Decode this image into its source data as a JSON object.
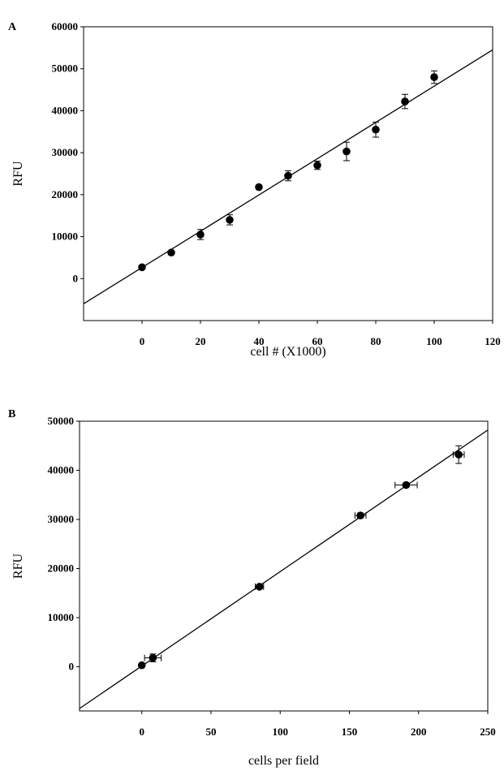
{
  "chart_data": [
    {
      "type": "scatter",
      "panel_label": "A",
      "xlabel": "cell # (X1000)",
      "ylabel": "RFU",
      "xlim": [
        -20,
        120
      ],
      "ylim": [
        -10000,
        60000
      ],
      "x_ticks": [
        0,
        20,
        40,
        60,
        80,
        100,
        120
      ],
      "y_ticks": [
        0,
        10000,
        20000,
        30000,
        40000,
        50000,
        60000
      ],
      "grid": false,
      "series": [
        {
          "points": [
            {
              "x": 0,
              "y": 2700,
              "yerr": 300
            },
            {
              "x": 10,
              "y": 6200,
              "yerr": 300
            },
            {
              "x": 20,
              "y": 10500,
              "yerr": 1200
            },
            {
              "x": 30,
              "y": 14000,
              "yerr": 1200
            },
            {
              "x": 40,
              "y": 21800,
              "yerr": 300
            },
            {
              "x": 50,
              "y": 24500,
              "yerr": 1200
            },
            {
              "x": 60,
              "y": 27000,
              "yerr": 1000
            },
            {
              "x": 70,
              "y": 30300,
              "yerr": 2200
            },
            {
              "x": 80,
              "y": 35500,
              "yerr": 1800
            },
            {
              "x": 90,
              "y": 42200,
              "yerr": 1700
            },
            {
              "x": 100,
              "y": 48000,
              "yerr": 1500
            }
          ],
          "trendline": {
            "x0": -20,
            "y0": -6000,
            "x1": 120,
            "y1": 54500
          }
        }
      ]
    },
    {
      "type": "scatter",
      "panel_label": "B",
      "xlabel": "cells per field",
      "ylabel": "RFU",
      "xlim": [
        -45,
        250
      ],
      "ylim": [
        -9000,
        50000
      ],
      "x_ticks": [
        0,
        50,
        100,
        150,
        200,
        250
      ],
      "y_ticks": [
        0,
        10000,
        20000,
        30000,
        40000,
        50000
      ],
      "grid": false,
      "series": [
        {
          "points": [
            {
              "x": 0,
              "y": 300,
              "xerr": 0,
              "yerr": 200
            },
            {
              "x": 8,
              "y": 1800,
              "xerr": 6,
              "yerr": 800
            },
            {
              "x": 85,
              "y": 16300,
              "xerr": 3,
              "yerr": 400
            },
            {
              "x": 158,
              "y": 30800,
              "xerr": 4,
              "yerr": 500
            },
            {
              "x": 191,
              "y": 37000,
              "xerr": 8,
              "yerr": 400
            },
            {
              "x": 229,
              "y": 43200,
              "xerr": 4,
              "yerr": 1800
            }
          ],
          "trendline": {
            "x0": -45,
            "y0": -8500,
            "x1": 250,
            "y1": 48200
          }
        }
      ]
    }
  ]
}
